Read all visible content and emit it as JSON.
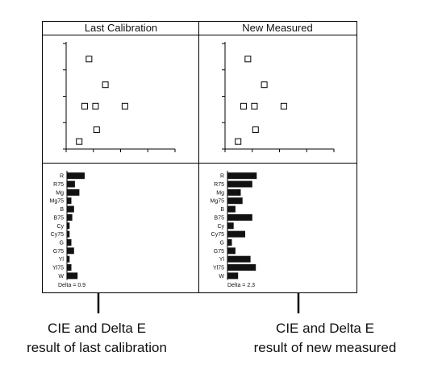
{
  "panels": [
    {
      "header": "Last Calibration",
      "scatter": {
        "type": "scatter",
        "xlim": [
          0,
          10
        ],
        "ylim": [
          0,
          10
        ],
        "points": [
          [
            2.1,
            8.4
          ],
          [
            3.6,
            6.0
          ],
          [
            1.7,
            4.0
          ],
          [
            2.7,
            4.0
          ],
          [
            5.4,
            4.0
          ],
          [
            2.8,
            1.8
          ],
          [
            1.2,
            0.7
          ]
        ]
      },
      "bars": {
        "type": "bar",
        "orientation": "horizontal",
        "categories": [
          "R",
          "R75",
          "Mg",
          "Mg75",
          "B",
          "B75",
          "Cy",
          "Cy75",
          "G",
          "G75",
          "Yl",
          "Yl75",
          "W"
        ],
        "values": [
          20,
          9,
          14,
          5,
          8,
          6,
          3,
          3,
          5,
          8,
          3,
          5,
          12
        ],
        "xlim": [
          0,
          100
        ]
      },
      "delta_label": "Delta = 0.9"
    },
    {
      "header": "New Measured",
      "scatter": {
        "type": "scatter",
        "xlim": [
          0,
          10
        ],
        "ylim": [
          0,
          10
        ],
        "points": [
          [
            2.1,
            8.4
          ],
          [
            3.6,
            6.0
          ],
          [
            1.7,
            4.0
          ],
          [
            2.7,
            4.0
          ],
          [
            5.4,
            4.0
          ],
          [
            2.8,
            1.8
          ],
          [
            1.2,
            0.7
          ]
        ]
      },
      "bars": {
        "type": "bar",
        "orientation": "horizontal",
        "categories": [
          "R",
          "R75",
          "Mg",
          "Mg75",
          "B",
          "B75",
          "Cy",
          "Cy75",
          "G",
          "G75",
          "Yl",
          "Yl75",
          "W"
        ],
        "values": [
          33,
          28,
          15,
          17,
          9,
          28,
          7,
          20,
          5,
          9,
          26,
          32,
          12
        ],
        "xlim": [
          0,
          100
        ]
      },
      "delta_label": "Delta = 2.3"
    }
  ],
  "captions": [
    {
      "line1": "CIE and Delta E",
      "line2": "result of last calibration"
    },
    {
      "line1": "CIE and Delta E",
      "line2": "result of new measured"
    }
  ],
  "colors": {
    "frame": "#000000",
    "bar": "#111111",
    "marker_fill": "#ffffff"
  }
}
